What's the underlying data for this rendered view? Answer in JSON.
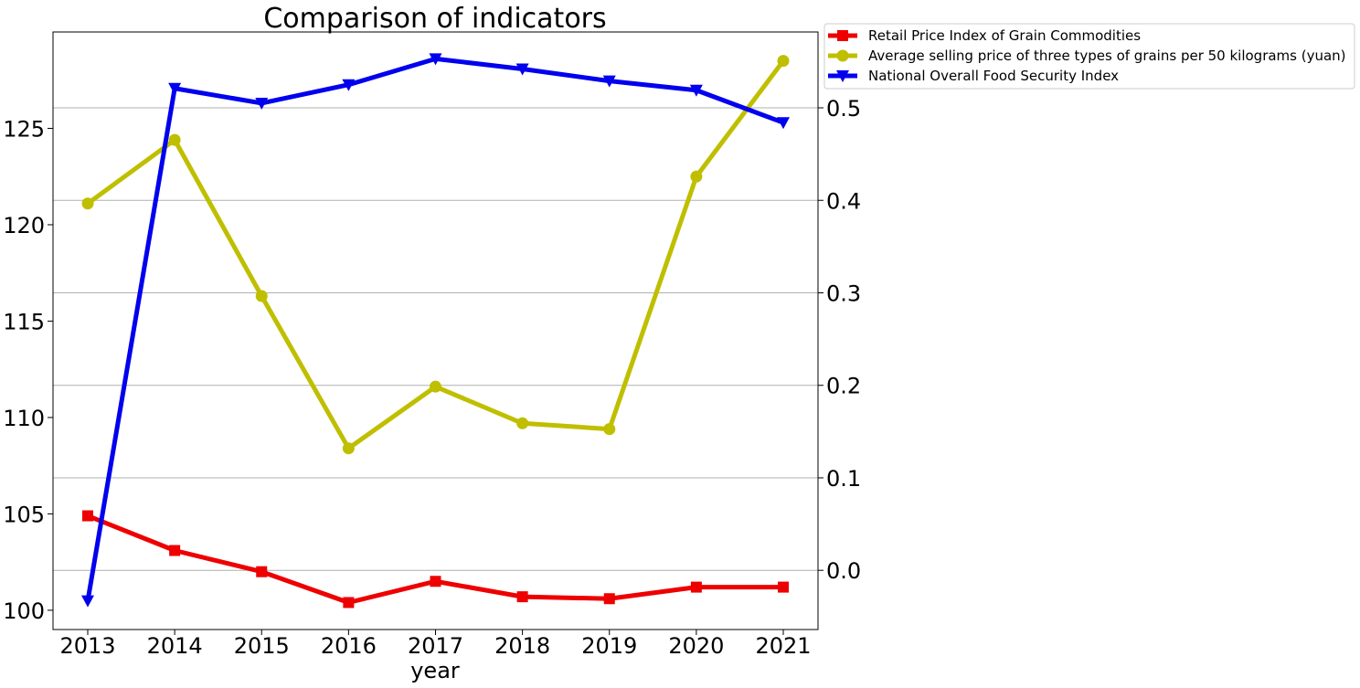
{
  "chart_data": {
    "type": "line",
    "title": "Comparison of indicators",
    "xlabel": "year",
    "ylabel_left": "",
    "ylabel_right": "",
    "categories": [
      "2013",
      "2014",
      "2015",
      "2016",
      "2017",
      "2018",
      "2019",
      "2020",
      "2021"
    ],
    "ylim_left": [
      99,
      130
    ],
    "yticks_left": [
      "100",
      "105",
      "110",
      "115",
      "120",
      "125"
    ],
    "ylim_right": [
      -0.064,
      0.582
    ],
    "yticks_right": [
      "0.0",
      "0.1",
      "0.2",
      "0.3",
      "0.4",
      "0.5"
    ],
    "grid": "horizontal lines at right-axis ticks",
    "legend_position": "outside top-right",
    "series": [
      {
        "name": "Retail Price Index of Grain Commodities",
        "axis": "left",
        "color": "#ee0000",
        "marker": "square",
        "values": [
          104.9,
          103.1,
          102.0,
          100.4,
          101.5,
          100.7,
          100.6,
          101.2,
          101.2
        ]
      },
      {
        "name": "Average selling price of three types of grains per 50 kilograms (yuan)",
        "axis": "left",
        "color": "#bfbf00",
        "marker": "circle",
        "values": [
          121.1,
          124.4,
          116.3,
          108.4,
          111.6,
          109.7,
          109.4,
          122.5,
          128.5
        ]
      },
      {
        "name": "National Overall Food Security Index",
        "axis": "right",
        "color": "#0000ee",
        "marker": "triangle-down",
        "values": [
          -0.033,
          0.521,
          0.505,
          0.525,
          0.553,
          0.542,
          0.529,
          0.519,
          0.484
        ]
      }
    ]
  }
}
